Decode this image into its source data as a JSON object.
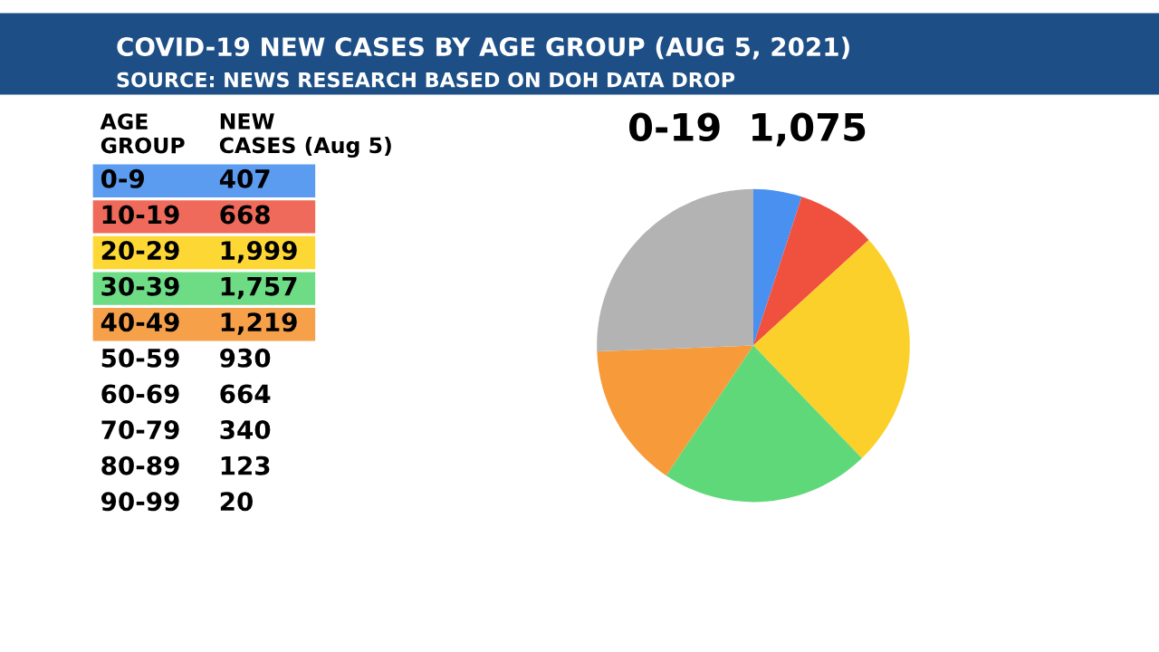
{
  "chart_data": [
    {
      "type": "other",
      "title": "COVID-19 NEW CASES BY AGE GROUP (AUG 5, 2021)",
      "subtitle": "SOURCE: NEWS RESEARCH BASED ON DOH DATA DROP",
      "annotations": [
        "AGE\nGROUP",
        "NEW\nCASES (Aug 5)"
      ],
      "categories": [
        "0-9",
        "10-19",
        "20-29",
        "30-39",
        "40-49",
        "50-59",
        "60-69",
        "70-79",
        "80-89",
        "90-99"
      ],
      "values": [
        407,
        668,
        1999,
        1757,
        1219,
        930,
        664,
        340,
        123,
        20
      ],
      "value_labels": [
        "407",
        "668",
        "1,999",
        "1,757",
        "1,219",
        "930",
        "664",
        "340",
        "123",
        "20"
      ],
      "colors": [
        "#5b9bf0",
        "#ef6a5a",
        "#fdd835",
        "#6ddc85",
        "#f6a04a",
        null,
        null,
        null,
        null,
        null
      ]
    },
    {
      "type": "pie",
      "categories": [
        null,
        null,
        null,
        null,
        null,
        null
      ],
      "values": [
        5.0,
        8.2,
        24.6,
        21.6,
        15.0,
        25.6
      ],
      "colors": [
        "#4a90f0",
        "#f0513f",
        "#fbd02a",
        "#5fd87a",
        "#f79a3a",
        "#b3b3b3"
      ],
      "annotations": [
        "0-19  1,075"
      ]
    }
  ]
}
